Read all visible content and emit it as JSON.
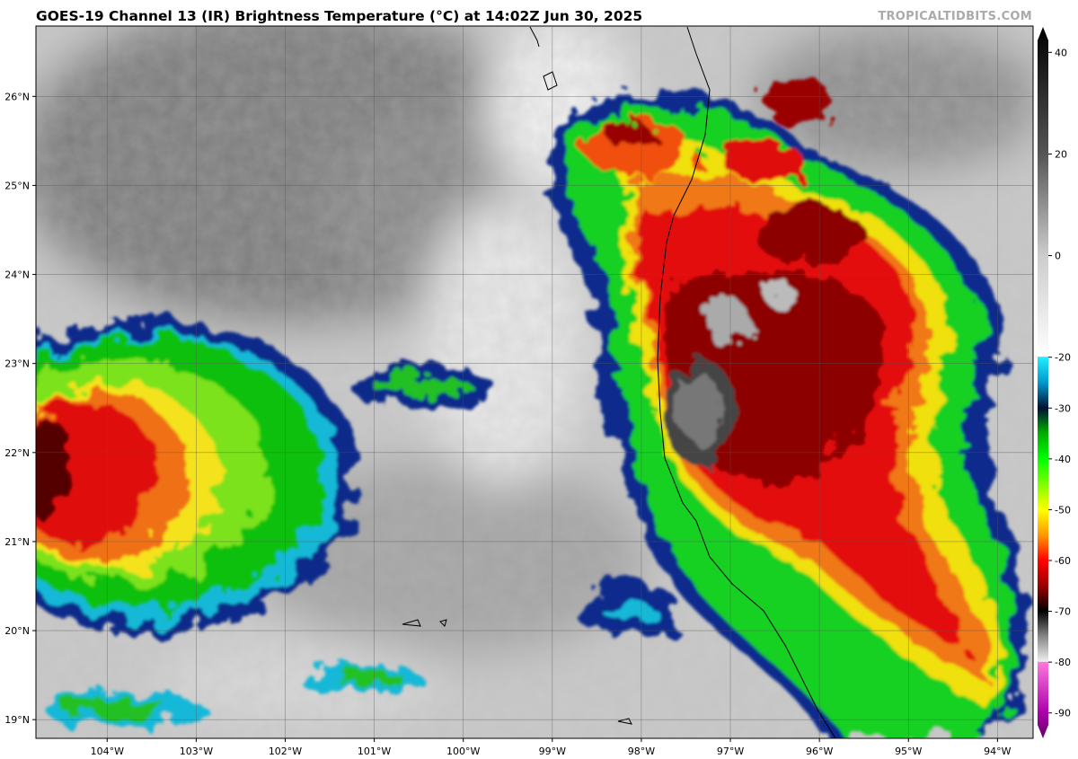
{
  "title": "GOES-19 Channel 13 (IR) Brightness Temperature (°C) at 14:02Z Jun 30, 2025",
  "watermark": "TROPICALTIDBITS.COM",
  "map": {
    "lonlim": [
      -104.8,
      -93.6
    ],
    "latlim": [
      18.79,
      26.79
    ],
    "lonticks": [
      {
        "value": -104,
        "label": "104°W"
      },
      {
        "value": -103,
        "label": "103°W"
      },
      {
        "value": -102,
        "label": "102°W"
      },
      {
        "value": -101,
        "label": "101°W"
      },
      {
        "value": -100,
        "label": "100°W"
      },
      {
        "value": -99,
        "label": "99°W"
      },
      {
        "value": -98,
        "label": "98°W"
      },
      {
        "value": -97,
        "label": "97°W"
      },
      {
        "value": -96,
        "label": "96°W"
      },
      {
        "value": -95,
        "label": "95°W"
      },
      {
        "value": -94,
        "label": "94°W"
      }
    ],
    "latticks": [
      {
        "value": 19,
        "label": "19°N"
      },
      {
        "value": 20,
        "label": "20°N"
      },
      {
        "value": 21,
        "label": "21°N"
      },
      {
        "value": 22,
        "label": "22°N"
      },
      {
        "value": 23,
        "label": "23°N"
      },
      {
        "value": 24,
        "label": "24°N"
      },
      {
        "value": 25,
        "label": "25°N"
      },
      {
        "value": 26,
        "label": "26°N"
      }
    ]
  },
  "colorbar": {
    "range": [
      -95,
      45
    ],
    "ticks": [
      40,
      20,
      0,
      -20,
      -30,
      -40,
      -50,
      -60,
      -70,
      -80,
      -90
    ]
  }
}
